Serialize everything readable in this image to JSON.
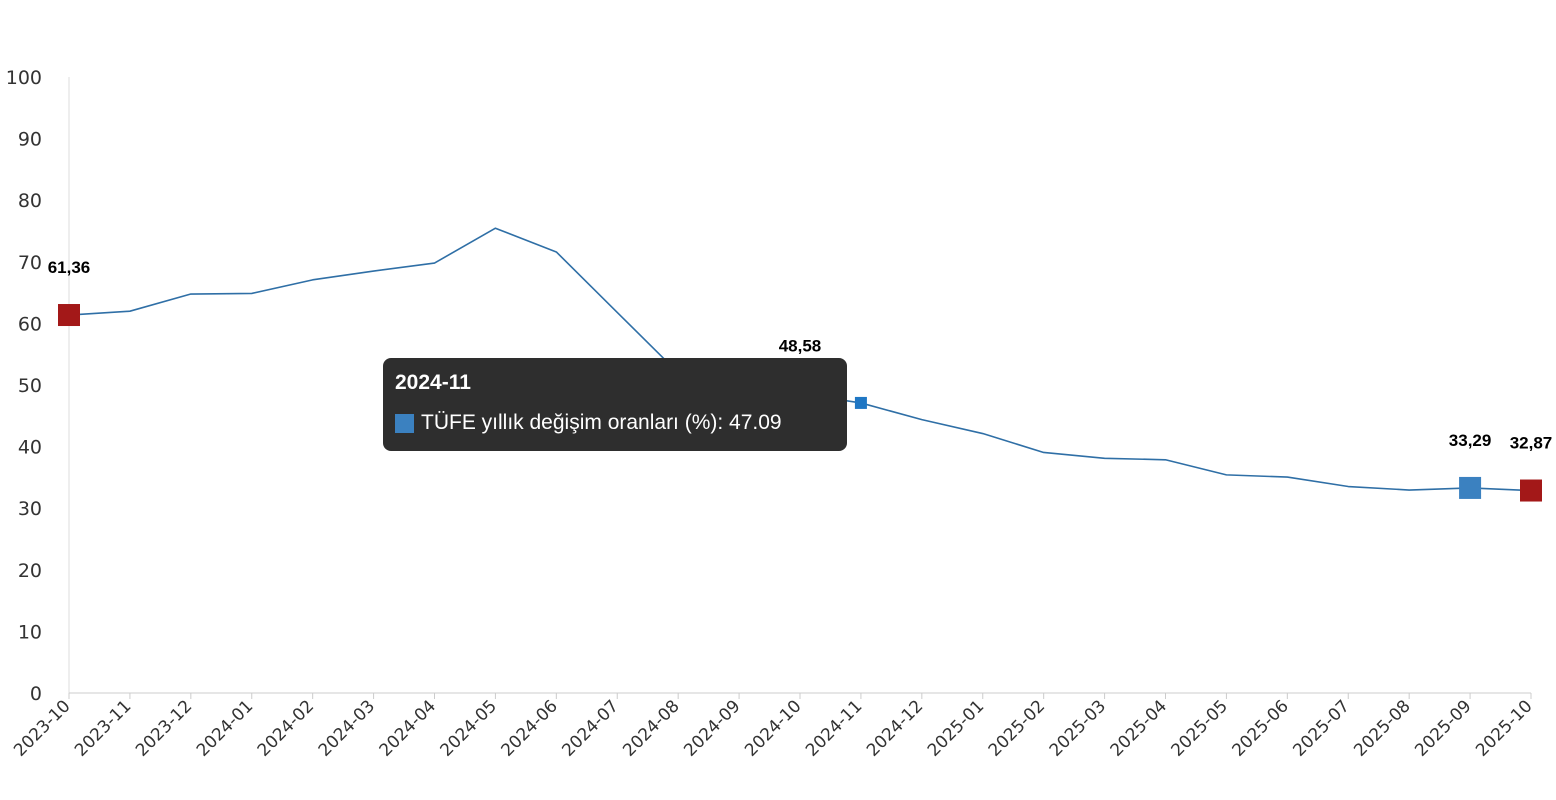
{
  "chart_data": {
    "type": "line",
    "categories": [
      "2023-10",
      "2023-11",
      "2023-12",
      "2024-01",
      "2024-02",
      "2024-03",
      "2024-04",
      "2024-05",
      "2024-06",
      "2024-07",
      "2024-08",
      "2024-09",
      "2024-10",
      "2024-11",
      "2024-12",
      "2025-01",
      "2025-02",
      "2025-03",
      "2025-04",
      "2025-05",
      "2025-06",
      "2025-07",
      "2025-08",
      "2025-09",
      "2025-10"
    ],
    "series": [
      {
        "name": "TÜFE yıllık değişim oranları (%)",
        "values": [
          61.36,
          61.98,
          64.77,
          64.86,
          67.07,
          68.5,
          69.8,
          75.45,
          71.6,
          61.78,
          51.97,
          49.38,
          48.58,
          47.09,
          44.38,
          42.12,
          39.05,
          38.1,
          37.86,
          35.41,
          35.05,
          33.52,
          32.95,
          33.29,
          32.87
        ]
      }
    ],
    "ylim": [
      0,
      100
    ],
    "yticks": [
      "100",
      "90",
      "80",
      "70",
      "60",
      "50",
      "40",
      "30",
      "20",
      "10",
      "0"
    ],
    "line_color": "#2f6fa6",
    "highlights": [
      {
        "category": "2023-10",
        "label": "61,36",
        "color": "#a31818"
      },
      {
        "category": "2024-10",
        "label": "48,58",
        "color": "#220000"
      },
      {
        "category": "2025-09",
        "label": "33,29",
        "color": "#3b81c0"
      },
      {
        "category": "2025-10",
        "label": "32,87",
        "color": "#a31818"
      }
    ],
    "hover": {
      "category": "2024-11",
      "color": "#1f77c4"
    },
    "grid": false,
    "title": "",
    "xlabel": "",
    "ylabel": ""
  },
  "tooltip": {
    "title": "2024-11",
    "series_label": "TÜFE yıllık değişim oranları (%): 47.09",
    "swatch_color": "#3b81c0"
  }
}
